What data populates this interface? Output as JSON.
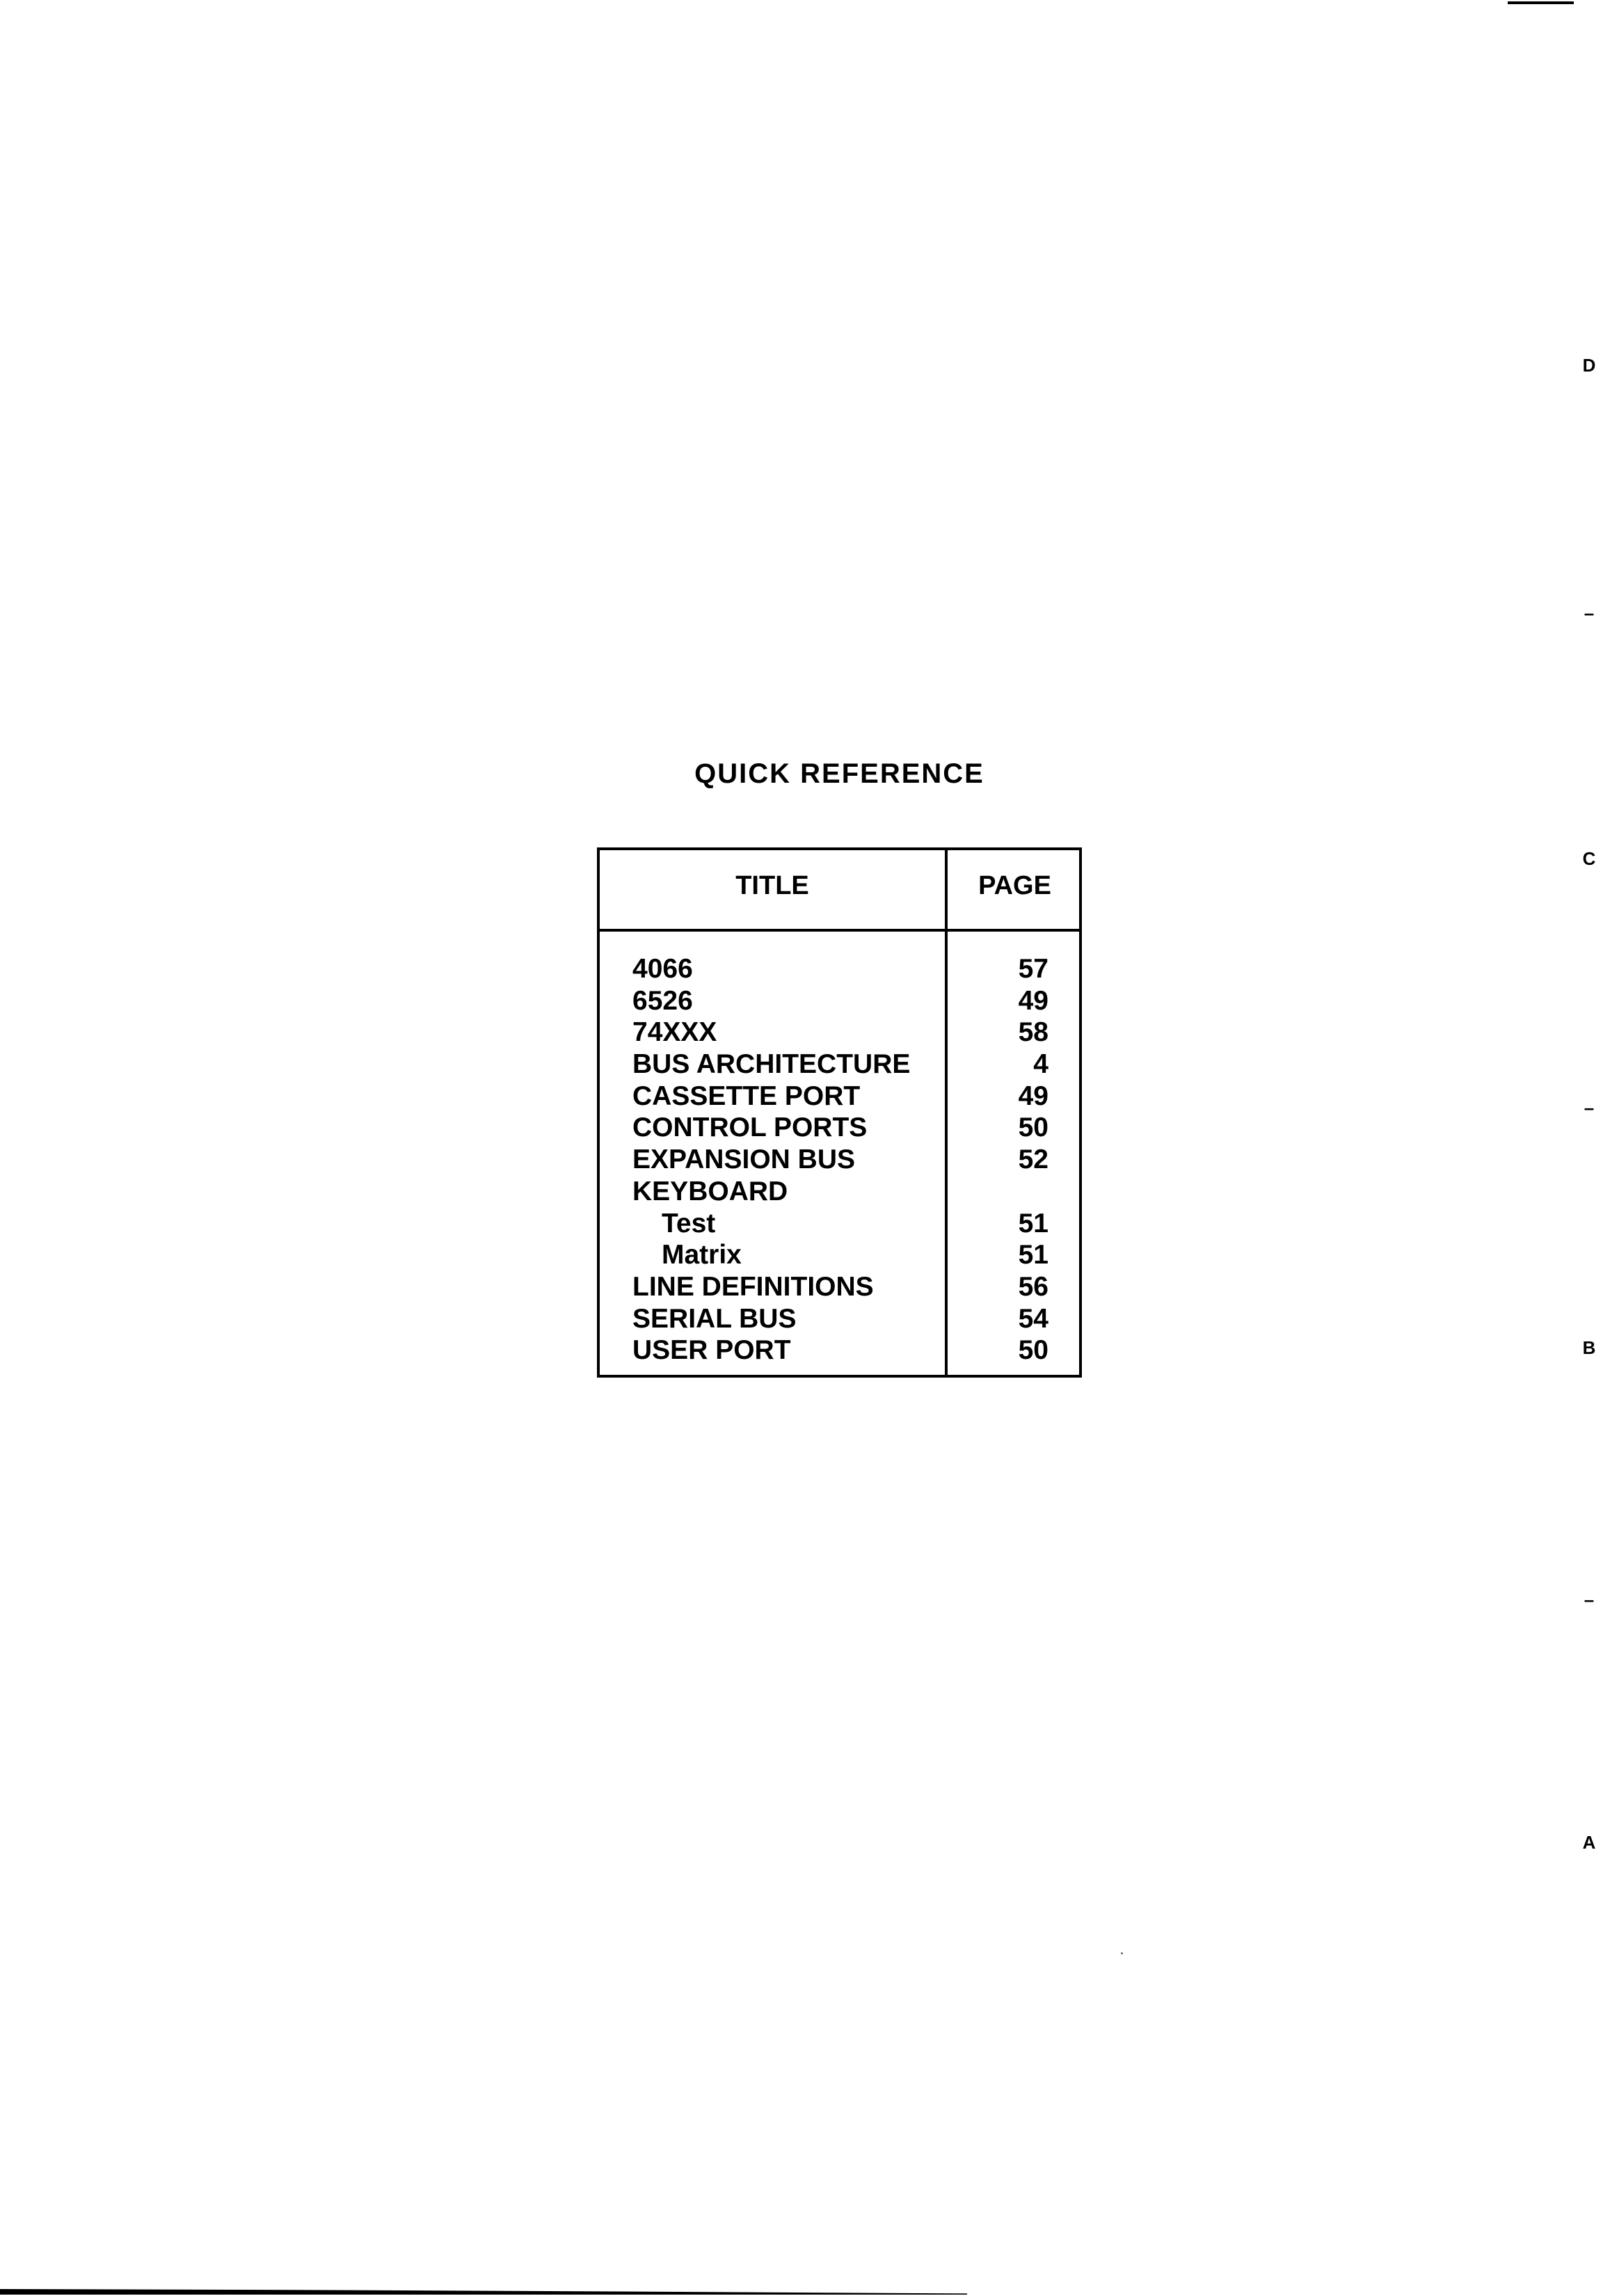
{
  "heading": "QUICK REFERENCE",
  "table": {
    "headers": {
      "title": "TITLE",
      "page": "PAGE"
    },
    "rows": [
      {
        "title": "4066",
        "page": "57"
      },
      {
        "title": "6526",
        "page": "49"
      },
      {
        "title": "74XXX",
        "page": "58"
      },
      {
        "title": "BUS ARCHITECTURE",
        "page": "4"
      },
      {
        "title": "CASSETTE PORT",
        "page": "49"
      },
      {
        "title": "CONTROL PORTS",
        "page": "50"
      },
      {
        "title": "EXPANSION BUS",
        "page": "52"
      },
      {
        "title": "KEYBOARD",
        "page": ""
      },
      {
        "title": "Test",
        "page": "51",
        "indent": true
      },
      {
        "title": "Matrix",
        "page": "51",
        "indent": true
      },
      {
        "title": "LINE DEFINITIONS",
        "page": "56"
      },
      {
        "title": "SERIAL BUS",
        "page": "54"
      },
      {
        "title": "USER PORT",
        "page": "50"
      }
    ]
  },
  "margin_marks": [
    "D",
    "–",
    "C",
    "–",
    "B",
    "–",
    "A"
  ]
}
